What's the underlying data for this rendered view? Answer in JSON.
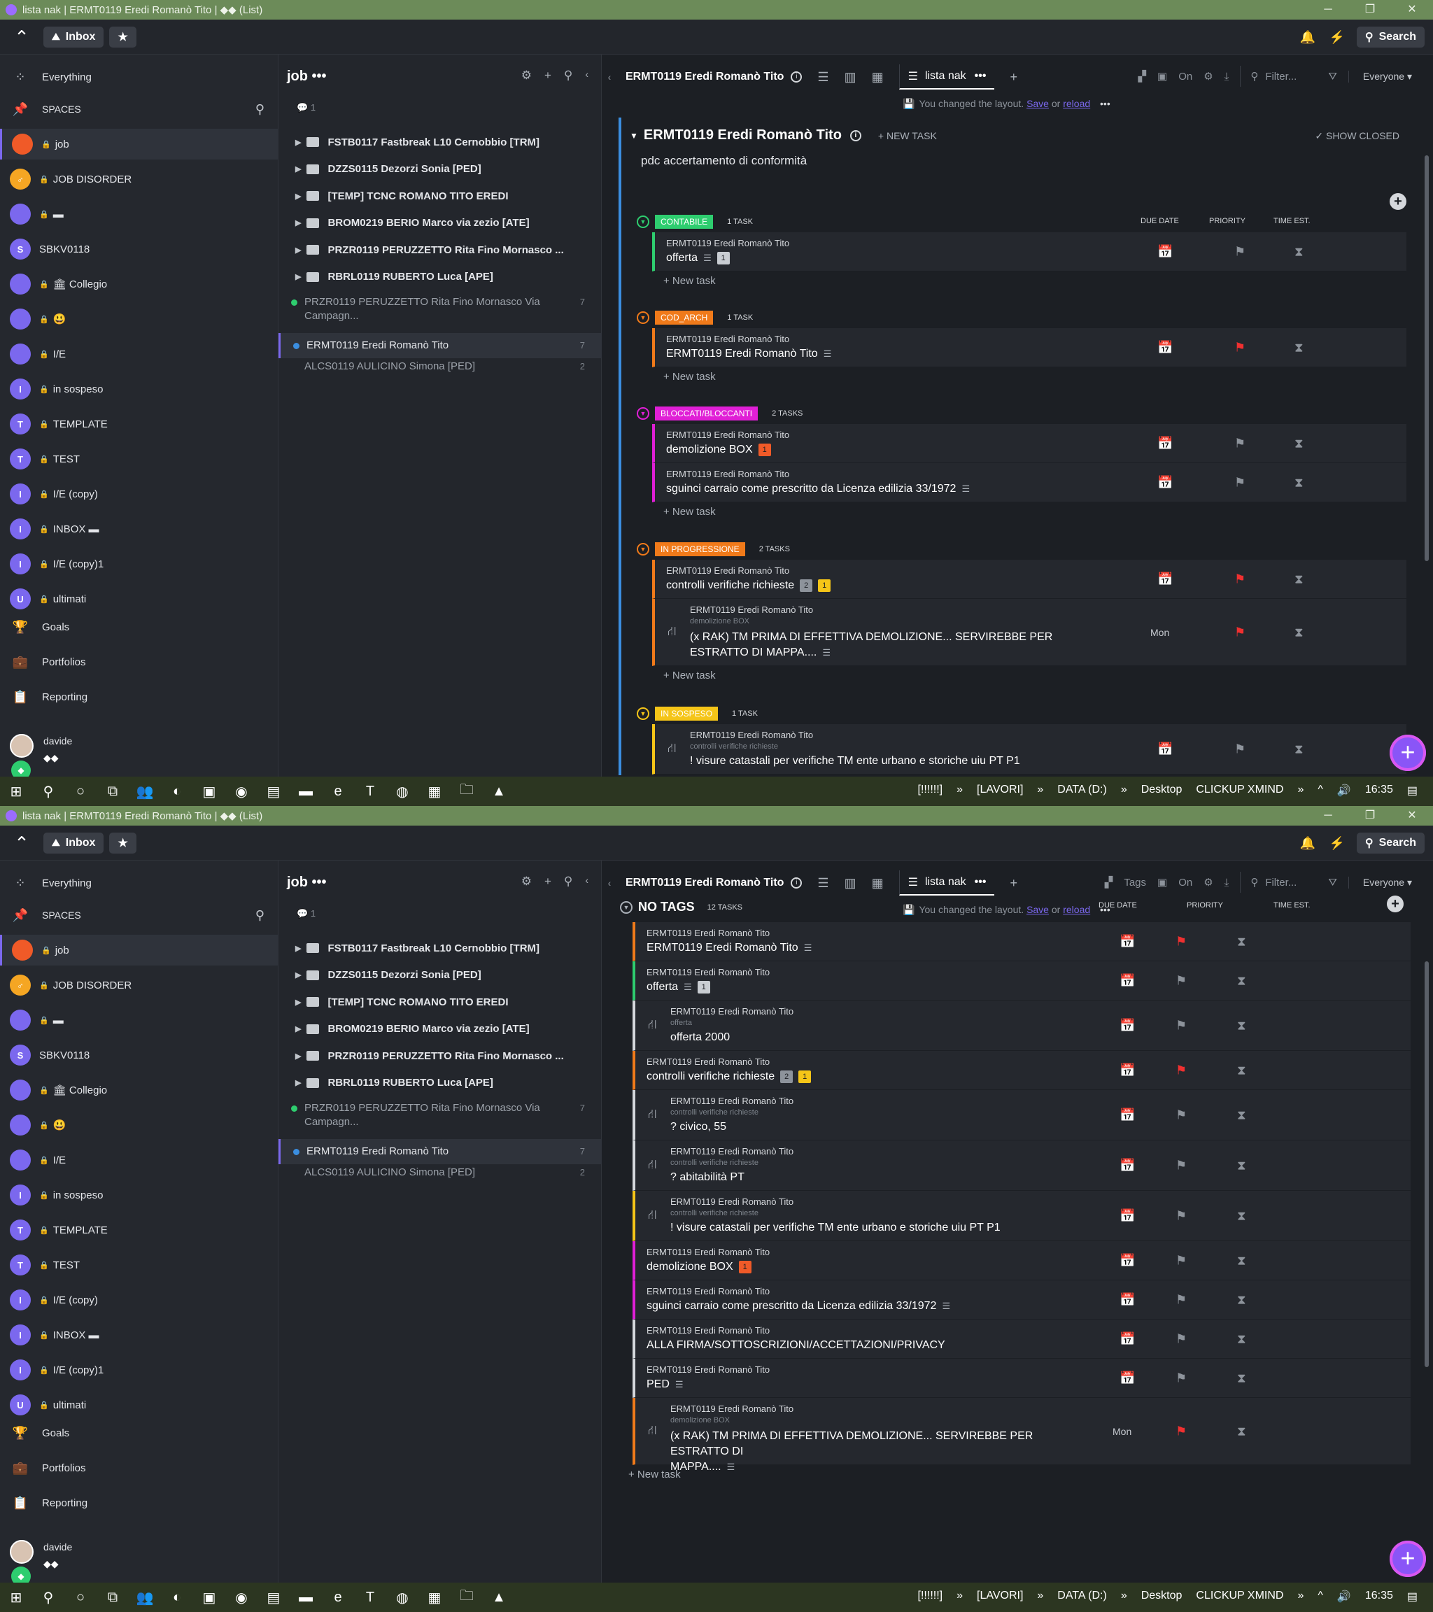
{
  "window": {
    "title": "lista nak | ERMT0119 Eredi Romanò Tito | ◆◆ (List)",
    "controls": [
      "─",
      "❐",
      "✕"
    ]
  },
  "topbar": {
    "inbox": "Inbox",
    "search": "Search"
  },
  "sidebar": {
    "everything": "Everything",
    "spaces": "SPACES",
    "items": [
      {
        "label": "job",
        "initial": "",
        "color": "#f05a28",
        "lock": true,
        "active": true
      },
      {
        "label": "JOB DISORDER",
        "initial": "♂",
        "color": "#f5a623",
        "lock": true
      },
      {
        "label": "▬",
        "initial": "",
        "color": "#7b68ee",
        "lock": true
      },
      {
        "label": "SBKV0118",
        "initial": "S",
        "color": "#7b68ee",
        "lock": false
      },
      {
        "label": "🏛 Collegio",
        "initial": "",
        "color": "#7b68ee",
        "lock": true
      },
      {
        "label": "😃",
        "initial": "",
        "color": "#7b68ee",
        "lock": true
      },
      {
        "label": "I/E",
        "initial": "",
        "color": "#7b68ee",
        "lock": true
      },
      {
        "label": "in sospeso",
        "initial": "I",
        "color": "#7b68ee",
        "lock": true
      },
      {
        "label": "TEMPLATE",
        "initial": "T",
        "color": "#7b68ee",
        "lock": true
      },
      {
        "label": "TEST",
        "initial": "T",
        "color": "#7b68ee",
        "lock": true
      },
      {
        "label": "I/E (copy)",
        "initial": "I",
        "color": "#7b68ee",
        "lock": true
      },
      {
        "label": "INBOX ▬",
        "initial": "I",
        "color": "#7b68ee",
        "lock": true
      },
      {
        "label": "I/E (copy)1",
        "initial": "I",
        "color": "#7b68ee",
        "lock": true
      },
      {
        "label": "ultimati",
        "initial": "U",
        "color": "#7b68ee",
        "lock": true
      }
    ],
    "nav": [
      {
        "label": "Goals",
        "icon": "trophy-icon"
      },
      {
        "label": "Portfolios",
        "icon": "briefcase-icon"
      },
      {
        "label": "Reporting",
        "icon": "clipboard-icon"
      }
    ],
    "user": {
      "name": "davide",
      "status": "◆◆"
    }
  },
  "listcol": {
    "title": "job •••",
    "comments": "1",
    "folders": [
      "FSTB0117 Fastbreak L10 Cernobbio [TRM]",
      "DZZS0115 Dezorzi Sonia [PED]",
      "[TEMP] TCNC ROMANO TITO EREDI",
      "BROM0219 BERIO Marco via zezio [ATE]",
      "PRZR0119 PERUZZETTO Rita Fino Mornasco ...",
      "RBRL0119 RUBERTO Luca [APE]"
    ],
    "lists": [
      {
        "label": "PRZR0119 PERUZZETTO Rita Fino Mornasco Via Campagn...",
        "count": "7",
        "dot": "#2ecd6f"
      },
      {
        "label": "ERMT0119 Eredi Romanò Tito",
        "count": "7",
        "dot": "#3b8ee0",
        "selected": true
      },
      {
        "label": "ALCS0119 AULICINO Simona [PED]",
        "count": "2",
        "dot": ""
      }
    ]
  },
  "main": {
    "crumb": "ERMT0119 Eredi Romanò Tito",
    "view": "lista nak",
    "filter": "Filter...",
    "everyone": "Everyone",
    "on": "On",
    "tags": "Tags",
    "layout_msg": "You changed the layout.",
    "save": "Save",
    "or": "or",
    "reload": "reload",
    "list_title": "ERMT0119 Eredi Romanò Tito",
    "new_task": "+ NEW TASK",
    "show_closed": "✓ SHOW CLOSED",
    "description": "pdc accertamento di conformità",
    "col_due": "DUE DATE",
    "col_priority": "PRIORITY",
    "col_time": "TIME EST.",
    "new_task_row": "+ New task",
    "groups": [
      {
        "name": "CONTABILE",
        "color": "#2ecd6f",
        "count": "1 TASK",
        "tasks": [
          {
            "parent": "ERMT0119 Eredi Romanò Tito",
            "name": "offerta",
            "lines": true,
            "tags": [
              {
                "t": "1",
                "c": "#c9cdd2"
              }
            ],
            "flag": "grey",
            "due": ""
          }
        ]
      },
      {
        "name": "COD_ARCH",
        "color": "#f07a1a",
        "count": "1 TASK",
        "tasks": [
          {
            "parent": "ERMT0119 Eredi Romanò Tito",
            "name": "ERMT0119 Eredi Romanò Tito",
            "lines": true,
            "tags": [],
            "flag": "red",
            "due": ""
          }
        ]
      },
      {
        "name": "BLOCCATI/BLOCCANTI",
        "color": "#e01fd6",
        "count": "2 TASKS",
        "tasks": [
          {
            "parent": "ERMT0119 Eredi Romanò Tito",
            "name": "demolizione BOX",
            "lines": false,
            "tags": [
              {
                "t": "1",
                "c": "#f05a28"
              }
            ],
            "flag": "grey",
            "due": ""
          },
          {
            "parent": "ERMT0119 Eredi Romanò Tito",
            "name": "sguinci carraio come prescritto da Licenza edilizia 33/1972",
            "lines": true,
            "tags": [],
            "flag": "grey",
            "due": ""
          }
        ]
      },
      {
        "name": "IN PROGRESSIONE",
        "color": "#f07a1a",
        "count": "2 TASKS",
        "tasks": [
          {
            "parent": "ERMT0119 Eredi Romanò Tito",
            "name": "controlli verifiche richieste",
            "lines": false,
            "tags": [
              {
                "t": "2",
                "c": "#8d939b"
              },
              {
                "t": "1",
                "c": "#f5c518"
              }
            ],
            "flag": "red",
            "due": ""
          },
          {
            "parent": "ERMT0119 Eredi Romanò Tito",
            "sub_parent": "demolizione BOX",
            "name": "(x RAK) TM PRIMA DI EFFETTIVA DEMOLIZIONE... SERVIREBBE PER",
            "name2": "ESTRATTO DI MAPPA....",
            "lines": true,
            "tags": [],
            "flag": "red",
            "due": "Mon",
            "subtask": true
          }
        ]
      },
      {
        "name": "IN SOSPESO",
        "color": "#f5c518",
        "count": "1 TASK",
        "tasks": [
          {
            "parent": "ERMT0119 Eredi Romanò Tito",
            "sub_parent": "controlli verifiche richieste",
            "name": "! visure catastali per verifiche TM ente urbano e storiche uiu PT P1",
            "lines": false,
            "tags": [],
            "flag": "grey",
            "due": "",
            "subtask": true
          }
        ]
      }
    ],
    "notags": {
      "title": "NO TAGS",
      "count": "12 TASKS",
      "tasks": [
        {
          "parent": "ERMT0119 Eredi Romanò Tito",
          "name": "ERMT0119 Eredi Romanò Tito",
          "lines": true,
          "tags": [],
          "flag": "red",
          "due": "",
          "color": "#f07a1a"
        },
        {
          "parent": "ERMT0119 Eredi Romanò Tito",
          "name": "offerta",
          "lines": true,
          "tags": [
            {
              "t": "1",
              "c": "#c9cdd2"
            }
          ],
          "flag": "grey",
          "due": "",
          "color": "#2ecd6f"
        },
        {
          "parent": "ERMT0119 Eredi Romanò Tito",
          "sub_parent": "offerta",
          "name": "offerta 2000",
          "lines": false,
          "tags": [],
          "flag": "grey",
          "due": "",
          "color": "#d5d8dc",
          "subtask": true
        },
        {
          "parent": "ERMT0119 Eredi Romanò Tito",
          "name": "controlli verifiche richieste",
          "lines": false,
          "tags": [
            {
              "t": "2",
              "c": "#8d939b"
            },
            {
              "t": "1",
              "c": "#f5c518"
            }
          ],
          "flag": "red",
          "due": "",
          "color": "#f07a1a"
        },
        {
          "parent": "ERMT0119 Eredi Romanò Tito",
          "sub_parent": "controlli verifiche richieste",
          "name": "? civico, 55",
          "lines": false,
          "tags": [],
          "flag": "grey",
          "due": "",
          "color": "#d5d8dc",
          "subtask": true
        },
        {
          "parent": "ERMT0119 Eredi Romanò Tito",
          "sub_parent": "controlli verifiche richieste",
          "name": "? abitabilità PT",
          "lines": false,
          "tags": [],
          "flag": "grey",
          "due": "",
          "color": "#d5d8dc",
          "subtask": true
        },
        {
          "parent": "ERMT0119 Eredi Romanò Tito",
          "sub_parent": "controlli verifiche richieste",
          "name": "! visure catastali per verifiche TM ente urbano e storiche uiu PT P1",
          "lines": false,
          "tags": [],
          "flag": "grey",
          "due": "",
          "color": "#f5c518",
          "subtask": true
        },
        {
          "parent": "ERMT0119 Eredi Romanò Tito",
          "name": "demolizione BOX",
          "lines": false,
          "tags": [
            {
              "t": "1",
              "c": "#f05a28"
            }
          ],
          "flag": "grey",
          "due": "",
          "color": "#e01fd6"
        },
        {
          "parent": "ERMT0119 Eredi Romanò Tito",
          "name": "sguinci carraio come prescritto da Licenza edilizia 33/1972",
          "lines": true,
          "tags": [],
          "flag": "grey",
          "due": "",
          "color": "#e01fd6"
        },
        {
          "parent": "ERMT0119 Eredi Romanò Tito",
          "name": "ALLA FIRMA/SOTTOSCRIZIONI/ACCETTAZIONI/PRIVACY",
          "lines": false,
          "tags": [],
          "flag": "grey",
          "due": "",
          "color": "#d5d8dc"
        },
        {
          "parent": "ERMT0119 Eredi Romanò Tito",
          "name": "PED",
          "lines": true,
          "tags": [],
          "flag": "grey",
          "due": "",
          "color": "#d5d8dc"
        },
        {
          "parent": "ERMT0119 Eredi Romanò Tito",
          "sub_parent": "demolizione BOX",
          "name": "(x RAK) TM PRIMA DI EFFETTIVA DEMOLIZIONE... SERVIREBBE PER ESTRATTO DI",
          "name2": "MAPPA....",
          "lines": true,
          "tags": [],
          "flag": "red",
          "due": "Mon",
          "color": "#f07a1a",
          "subtask": true
        }
      ]
    }
  },
  "taskbar": {
    "tray": [
      "[!!!!!!]",
      "»",
      "[LAVORI]",
      "»",
      "DATA (D:)",
      "»",
      "Desktop",
      "CLICKUP XMIND",
      "»"
    ],
    "time": "16:35"
  }
}
